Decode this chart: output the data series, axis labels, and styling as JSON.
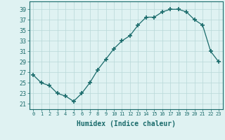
{
  "x": [
    0,
    1,
    2,
    3,
    4,
    5,
    6,
    7,
    8,
    9,
    10,
    11,
    12,
    13,
    14,
    15,
    16,
    17,
    18,
    19,
    20,
    21,
    22,
    23
  ],
  "y": [
    26.5,
    25,
    24.5,
    23,
    22.5,
    21.5,
    23,
    25,
    27.5,
    29.5,
    31.5,
    33,
    34,
    36,
    37.5,
    37.5,
    38.5,
    39,
    39,
    38.5,
    37,
    36,
    31,
    29
  ],
  "xlabel": "Humidex (Indice chaleur)",
  "xlim": [
    -0.5,
    23.5
  ],
  "ylim": [
    20,
    40.5
  ],
  "yticks": [
    21,
    23,
    25,
    27,
    29,
    31,
    33,
    35,
    37,
    39
  ],
  "xticks": [
    0,
    1,
    2,
    3,
    4,
    5,
    6,
    7,
    8,
    9,
    10,
    11,
    12,
    13,
    14,
    15,
    16,
    17,
    18,
    19,
    20,
    21,
    22,
    23
  ],
  "xtick_labels": [
    "0",
    "1",
    "2",
    "3",
    "4",
    "5",
    "6",
    "7",
    "8",
    "9",
    "10",
    "11",
    "12",
    "13",
    "14",
    "15",
    "16",
    "17",
    "18",
    "19",
    "20",
    "21",
    "22",
    "23"
  ],
  "line_color": "#1a6b6b",
  "marker": "+",
  "marker_size": 4,
  "bg_color": "#dff2f2",
  "grid_color": "#b8d8d8",
  "plot_bg": "#dff2f2",
  "spine_color": "#1a6b6b"
}
